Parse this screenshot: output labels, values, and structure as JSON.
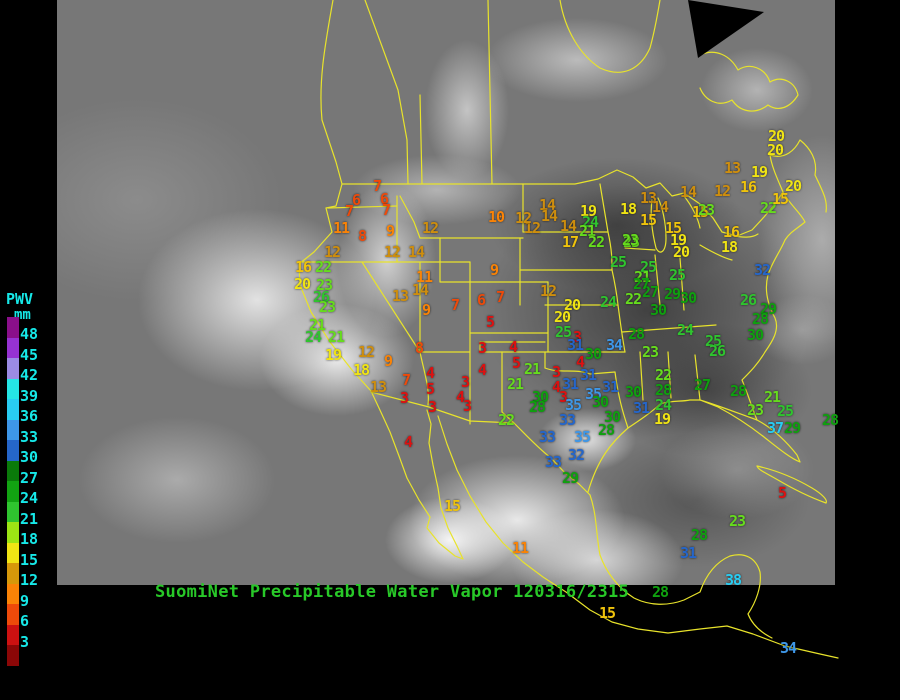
{
  "caption": {
    "text": "SuomiNet Precipitable Water Vapor 120316/2315",
    "color": "#28C828"
  },
  "legend": {
    "title": "PWV",
    "unit": "mm",
    "label_color": "#16E8E8",
    "tick_labels": [
      48,
      45,
      42,
      39,
      36,
      33,
      30,
      27,
      24,
      21,
      18,
      15,
      12,
      9,
      6,
      3
    ],
    "swatch_colors": [
      "#8A0F8A",
      "#9632D2",
      "#9B8BE4",
      "#25E5E5",
      "#29CCF2",
      "#3E97E8",
      "#2566CA",
      "#0A7A0A",
      "#12A312",
      "#2FC42F",
      "#9CE414",
      "#F0E414",
      "#D6980A",
      "#FA8306",
      "#EE4A0A",
      "#CC1111",
      "#8B0707"
    ]
  },
  "value_color_bands": [
    {
      "max": 5,
      "color": "#DD1111"
    },
    {
      "max": 8,
      "color": "#EE4A0A"
    },
    {
      "max": 11,
      "color": "#FA8306"
    },
    {
      "max": 14,
      "color": "#CE8E0E"
    },
    {
      "max": 17,
      "color": "#EFC30C"
    },
    {
      "max": 20,
      "color": "#F0E414"
    },
    {
      "max": 23,
      "color": "#66DC1E"
    },
    {
      "max": 26,
      "color": "#2FC42F"
    },
    {
      "max": 30,
      "color": "#0FA00F"
    },
    {
      "max": 33,
      "color": "#2566CA"
    },
    {
      "max": 36,
      "color": "#3E97E8"
    },
    {
      "max": 39,
      "color": "#29CCF2"
    },
    {
      "max": 42,
      "color": "#25E5E5"
    },
    {
      "max": 45,
      "color": "#9B8BE4"
    },
    {
      "max": 48,
      "color": "#9632D2"
    },
    {
      "max": 99,
      "color": "#8A0F8A"
    }
  ],
  "map": {
    "outline_color": "#E8E32B"
  },
  "stations": [
    [
      7,
      377,
      186
    ],
    [
      6,
      356,
      200
    ],
    [
      6,
      384,
      199
    ],
    [
      7,
      349,
      211
    ],
    [
      7,
      386,
      210
    ],
    [
      11,
      341,
      228
    ],
    [
      8,
      362,
      236
    ],
    [
      9,
      390,
      231
    ],
    [
      12,
      430,
      228
    ],
    [
      12,
      332,
      252
    ],
    [
      12,
      392,
      252
    ],
    [
      14,
      416,
      252
    ],
    [
      12,
      532,
      228
    ],
    [
      13,
      400,
      296
    ],
    [
      11,
      424,
      277
    ],
    [
      14,
      420,
      290
    ],
    [
      9,
      426,
      310
    ],
    [
      8,
      419,
      348
    ],
    [
      12,
      366,
      352
    ],
    [
      9,
      388,
      361
    ],
    [
      18,
      361,
      370
    ],
    [
      13,
      378,
      387
    ],
    [
      19,
      333,
      355
    ],
    [
      16,
      303,
      267
    ],
    [
      22,
      323,
      267
    ],
    [
      20,
      302,
      284
    ],
    [
      23,
      324,
      285
    ],
    [
      26,
      321,
      297
    ],
    [
      23,
      327,
      307
    ],
    [
      21,
      317,
      325
    ],
    [
      24,
      313,
      337
    ],
    [
      21,
      336,
      337
    ],
    [
      7,
      406,
      380
    ],
    [
      3,
      404,
      398
    ],
    [
      4,
      430,
      373
    ],
    [
      5,
      430,
      389
    ],
    [
      3,
      432,
      407
    ],
    [
      9,
      494,
      270
    ],
    [
      7,
      500,
      297
    ],
    [
      6,
      481,
      300
    ],
    [
      5,
      490,
      322
    ],
    [
      3,
      482,
      348
    ],
    [
      7,
      455,
      305
    ],
    [
      3,
      577,
      337
    ],
    [
      4,
      580,
      362
    ],
    [
      3,
      556,
      372
    ],
    [
      4,
      556,
      387
    ],
    [
      3,
      563,
      397
    ],
    [
      4,
      513,
      347
    ],
    [
      5,
      516,
      363
    ],
    [
      3,
      465,
      382
    ],
    [
      4,
      482,
      370
    ],
    [
      4,
      460,
      397
    ],
    [
      3,
      467,
      406
    ],
    [
      10,
      496,
      217
    ],
    [
      12,
      523,
      218
    ],
    [
      14,
      547,
      205
    ],
    [
      14,
      549,
      216
    ],
    [
      14,
      568,
      226
    ],
    [
      17,
      570,
      242
    ],
    [
      19,
      588,
      211
    ],
    [
      24,
      590,
      222
    ],
    [
      21,
      587,
      231
    ],
    [
      22,
      596,
      242
    ],
    [
      23,
      631,
      242
    ],
    [
      12,
      548,
      291
    ],
    [
      20,
      572,
      305
    ],
    [
      20,
      562,
      317
    ],
    [
      25,
      563,
      332
    ],
    [
      21,
      532,
      369
    ],
    [
      21,
      515,
      384
    ],
    [
      30,
      540,
      397
    ],
    [
      28,
      537,
      407
    ],
    [
      22,
      506,
      420
    ],
    [
      31,
      575,
      345
    ],
    [
      34,
      614,
      345
    ],
    [
      30,
      593,
      354
    ],
    [
      31,
      588,
      375
    ],
    [
      31,
      570,
      384
    ],
    [
      31,
      610,
      387
    ],
    [
      35,
      593,
      394
    ],
    [
      30,
      600,
      402
    ],
    [
      35,
      573,
      405
    ],
    [
      33,
      567,
      420
    ],
    [
      33,
      547,
      437
    ],
    [
      35,
      582,
      437
    ],
    [
      32,
      576,
      455
    ],
    [
      33,
      553,
      462
    ],
    [
      29,
      570,
      478
    ],
    [
      30,
      612,
      417
    ],
    [
      28,
      606,
      430
    ],
    [
      30,
      633,
      392
    ],
    [
      28,
      663,
      390
    ],
    [
      22,
      663,
      375
    ],
    [
      23,
      650,
      352
    ],
    [
      31,
      641,
      408
    ],
    [
      24,
      663,
      405
    ],
    [
      19,
      662,
      419
    ],
    [
      27,
      702,
      385
    ],
    [
      28,
      738,
      391
    ],
    [
      21,
      772,
      397
    ],
    [
      23,
      755,
      410
    ],
    [
      25,
      785,
      411
    ],
    [
      37,
      775,
      428
    ],
    [
      29,
      792,
      428
    ],
    [
      28,
      830,
      420
    ],
    [
      5,
      782,
      493
    ],
    [
      25,
      618,
      262
    ],
    [
      25,
      648,
      267
    ],
    [
      21,
      642,
      277
    ],
    [
      27,
      650,
      292
    ],
    [
      29,
      672,
      294
    ],
    [
      30,
      688,
      298
    ],
    [
      30,
      658,
      310
    ],
    [
      22,
      633,
      299
    ],
    [
      24,
      608,
      302
    ],
    [
      24,
      685,
      330
    ],
    [
      25,
      713,
      341
    ],
    [
      26,
      717,
      351
    ],
    [
      28,
      636,
      334
    ],
    [
      25,
      677,
      275
    ],
    [
      27,
      641,
      284
    ],
    [
      13,
      648,
      198
    ],
    [
      14,
      660,
      207
    ],
    [
      18,
      628,
      209
    ],
    [
      15,
      648,
      220
    ],
    [
      15,
      673,
      228
    ],
    [
      15,
      700,
      212
    ],
    [
      19,
      678,
      240
    ],
    [
      20,
      681,
      252
    ],
    [
      23,
      630,
      240
    ],
    [
      13,
      732,
      168
    ],
    [
      19,
      759,
      172
    ],
    [
      20,
      775,
      150
    ],
    [
      20,
      776,
      136
    ],
    [
      16,
      748,
      187
    ],
    [
      12,
      722,
      191
    ],
    [
      14,
      688,
      192
    ],
    [
      23,
      706,
      210
    ],
    [
      22,
      768,
      208
    ],
    [
      16,
      731,
      232
    ],
    [
      18,
      729,
      247
    ],
    [
      20,
      793,
      186
    ],
    [
      15,
      780,
      199
    ],
    [
      32,
      762,
      270
    ],
    [
      26,
      748,
      300
    ],
    [
      29,
      768,
      309
    ],
    [
      28,
      760,
      319
    ],
    [
      30,
      755,
      335
    ],
    [
      4,
      408,
      442
    ],
    [
      15,
      452,
      506
    ],
    [
      11,
      520,
      548
    ],
    [
      23,
      737,
      521
    ],
    [
      28,
      699,
      535
    ],
    [
      31,
      688,
      553
    ],
    [
      38,
      733,
      580
    ],
    [
      28,
      660,
      592
    ],
    [
      15,
      607,
      613
    ],
    [
      34,
      788,
      648
    ]
  ]
}
